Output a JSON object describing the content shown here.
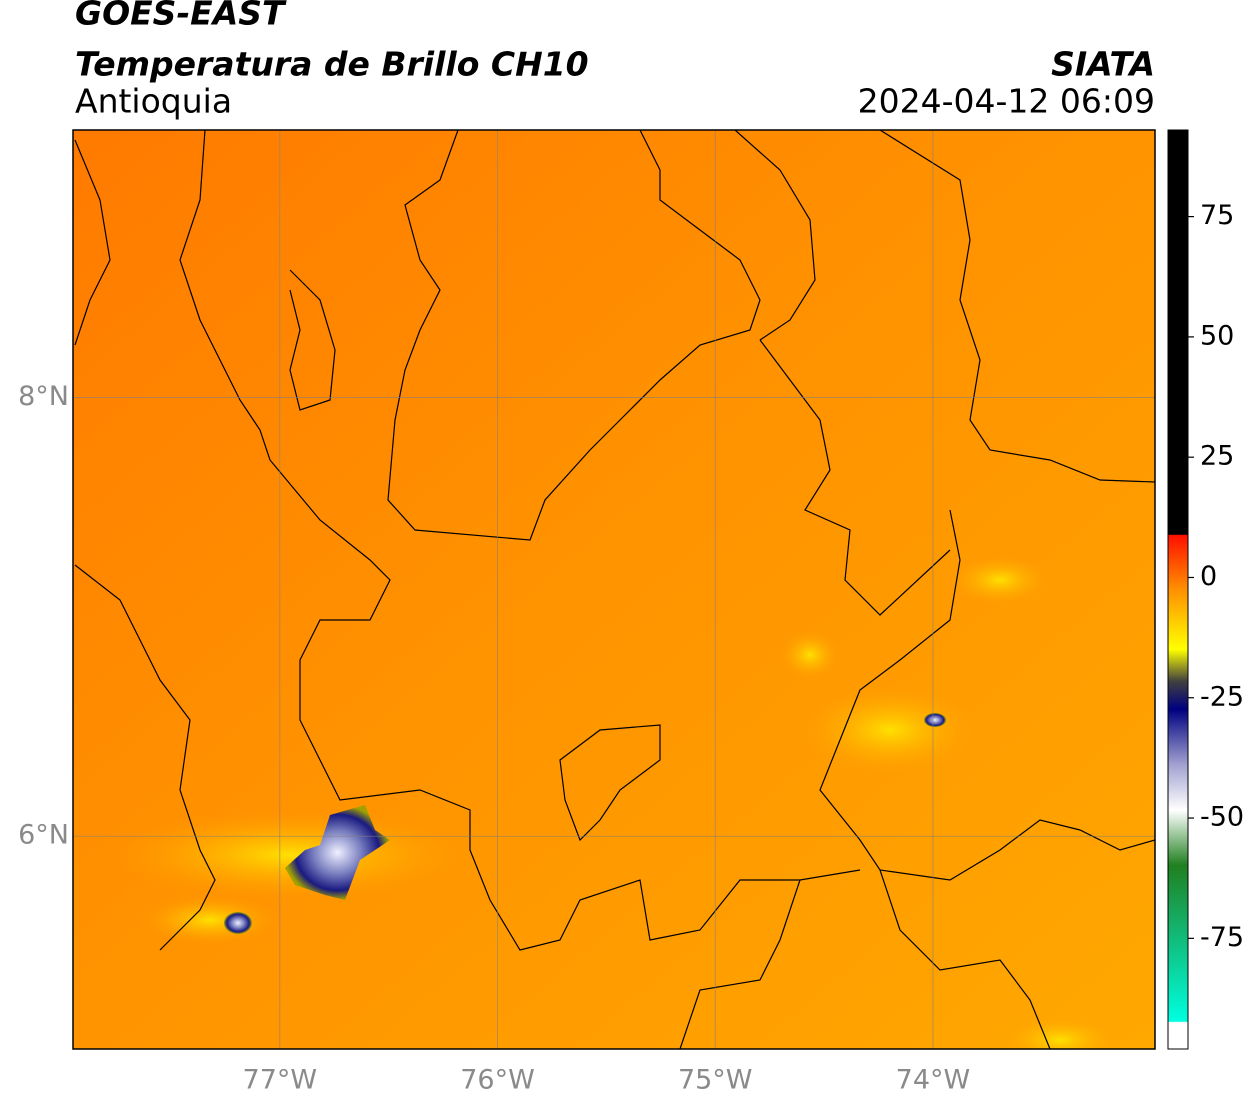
{
  "header": {
    "title": "GOES-EAST",
    "subtitle": "Temperatura de Brillo CH10",
    "region": "Antioquia",
    "source": "SIATA",
    "datetime": "2024-04-12 06:09"
  },
  "map": {
    "xlim": [
      -77.95,
      -72.98
    ],
    "ylim": [
      5.03,
      9.22
    ],
    "xticks": [
      {
        "value": -77,
        "label": "77°W"
      },
      {
        "value": -76,
        "label": "76°W"
      },
      {
        "value": -75,
        "label": "75°W"
      },
      {
        "value": -74,
        "label": "74°W"
      }
    ],
    "yticks": [
      {
        "value": 8,
        "label": "8°N"
      },
      {
        "value": 6,
        "label": "6°N"
      }
    ],
    "grid": true
  },
  "colorbar": {
    "lim": [
      -98,
      93
    ],
    "ticks": [
      75,
      50,
      25,
      0,
      -25,
      -50,
      -75
    ]
  }
}
